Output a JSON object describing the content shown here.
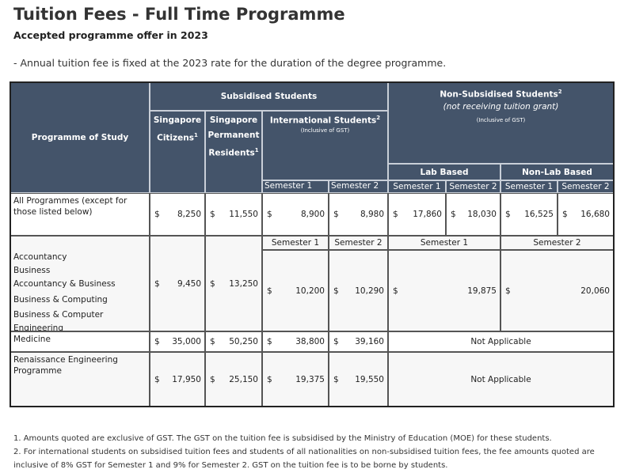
{
  "title": "Tuition Fees - Full Time Programme",
  "subtitle": "Accepted programme offer in 2023",
  "note": "- Annual tuition fee is fixed at the 2023 rate for the duration of the degree programme.",
  "table": {
    "currency": "$",
    "headers": {
      "programme": "Programme of Study",
      "subsidised": "Subsidised Students",
      "citizens_1": "Singapore",
      "citizens_2": "Citizens",
      "citizens_sup": "1",
      "pr_1": "Singapore",
      "pr_2": "Permanent",
      "pr_3": "Residents",
      "pr_sup": "1",
      "international": "International Students",
      "international_sup": "2",
      "international_note": "(Inclusive of GST)",
      "nonsub": "Non-Subsidised Students",
      "nonsub_sup": "2",
      "nonsub_sub": "(not receiving tuition grant)",
      "nonsub_note": "(Inclusive of GST)",
      "lab": "Lab Based",
      "nonlab": "Non-Lab Based",
      "sem1": "Semester 1",
      "sem2": "Semester 2"
    },
    "rows": [
      {
        "programme": "All Programmes (except for those listed below)",
        "values": [
          "8,250",
          "11,550",
          "8,900",
          "8,980",
          "17,860",
          "18,030",
          "16,525",
          "16,680"
        ]
      },
      {
        "programmes": [
          "Accountancy",
          "Business",
          "Accountancy & Business",
          "Business & Computing",
          "Business & Computer Engineering"
        ],
        "values": [
          "9,450",
          "13,250",
          "10,200",
          "10,290",
          "19,875",
          "20,060"
        ]
      },
      {
        "programme": "Medicine",
        "values": [
          "35,000",
          "50,250",
          "38,800",
          "39,160"
        ],
        "nonsub": "Not Applicable"
      },
      {
        "programme": "Renaissance Engineering Programme",
        "values": [
          "17,950",
          "25,150",
          "19,375",
          "19,550"
        ],
        "nonsub": "Not Applicable"
      }
    ]
  },
  "footnotes": [
    "1. Amounts quoted are exclusive of GST. The GST on the tuition fee is subsidised by the Ministry of Education (MOE) for these students.",
    "2. For international students on subsidised tuition fees and students of all nationalities on non-subsidised tuition fees, the fee amounts quoted are inclusive of 8% GST for Semester 1 and 9% for Semester 2. GST on the tuition fee is to be borne by students."
  ]
}
